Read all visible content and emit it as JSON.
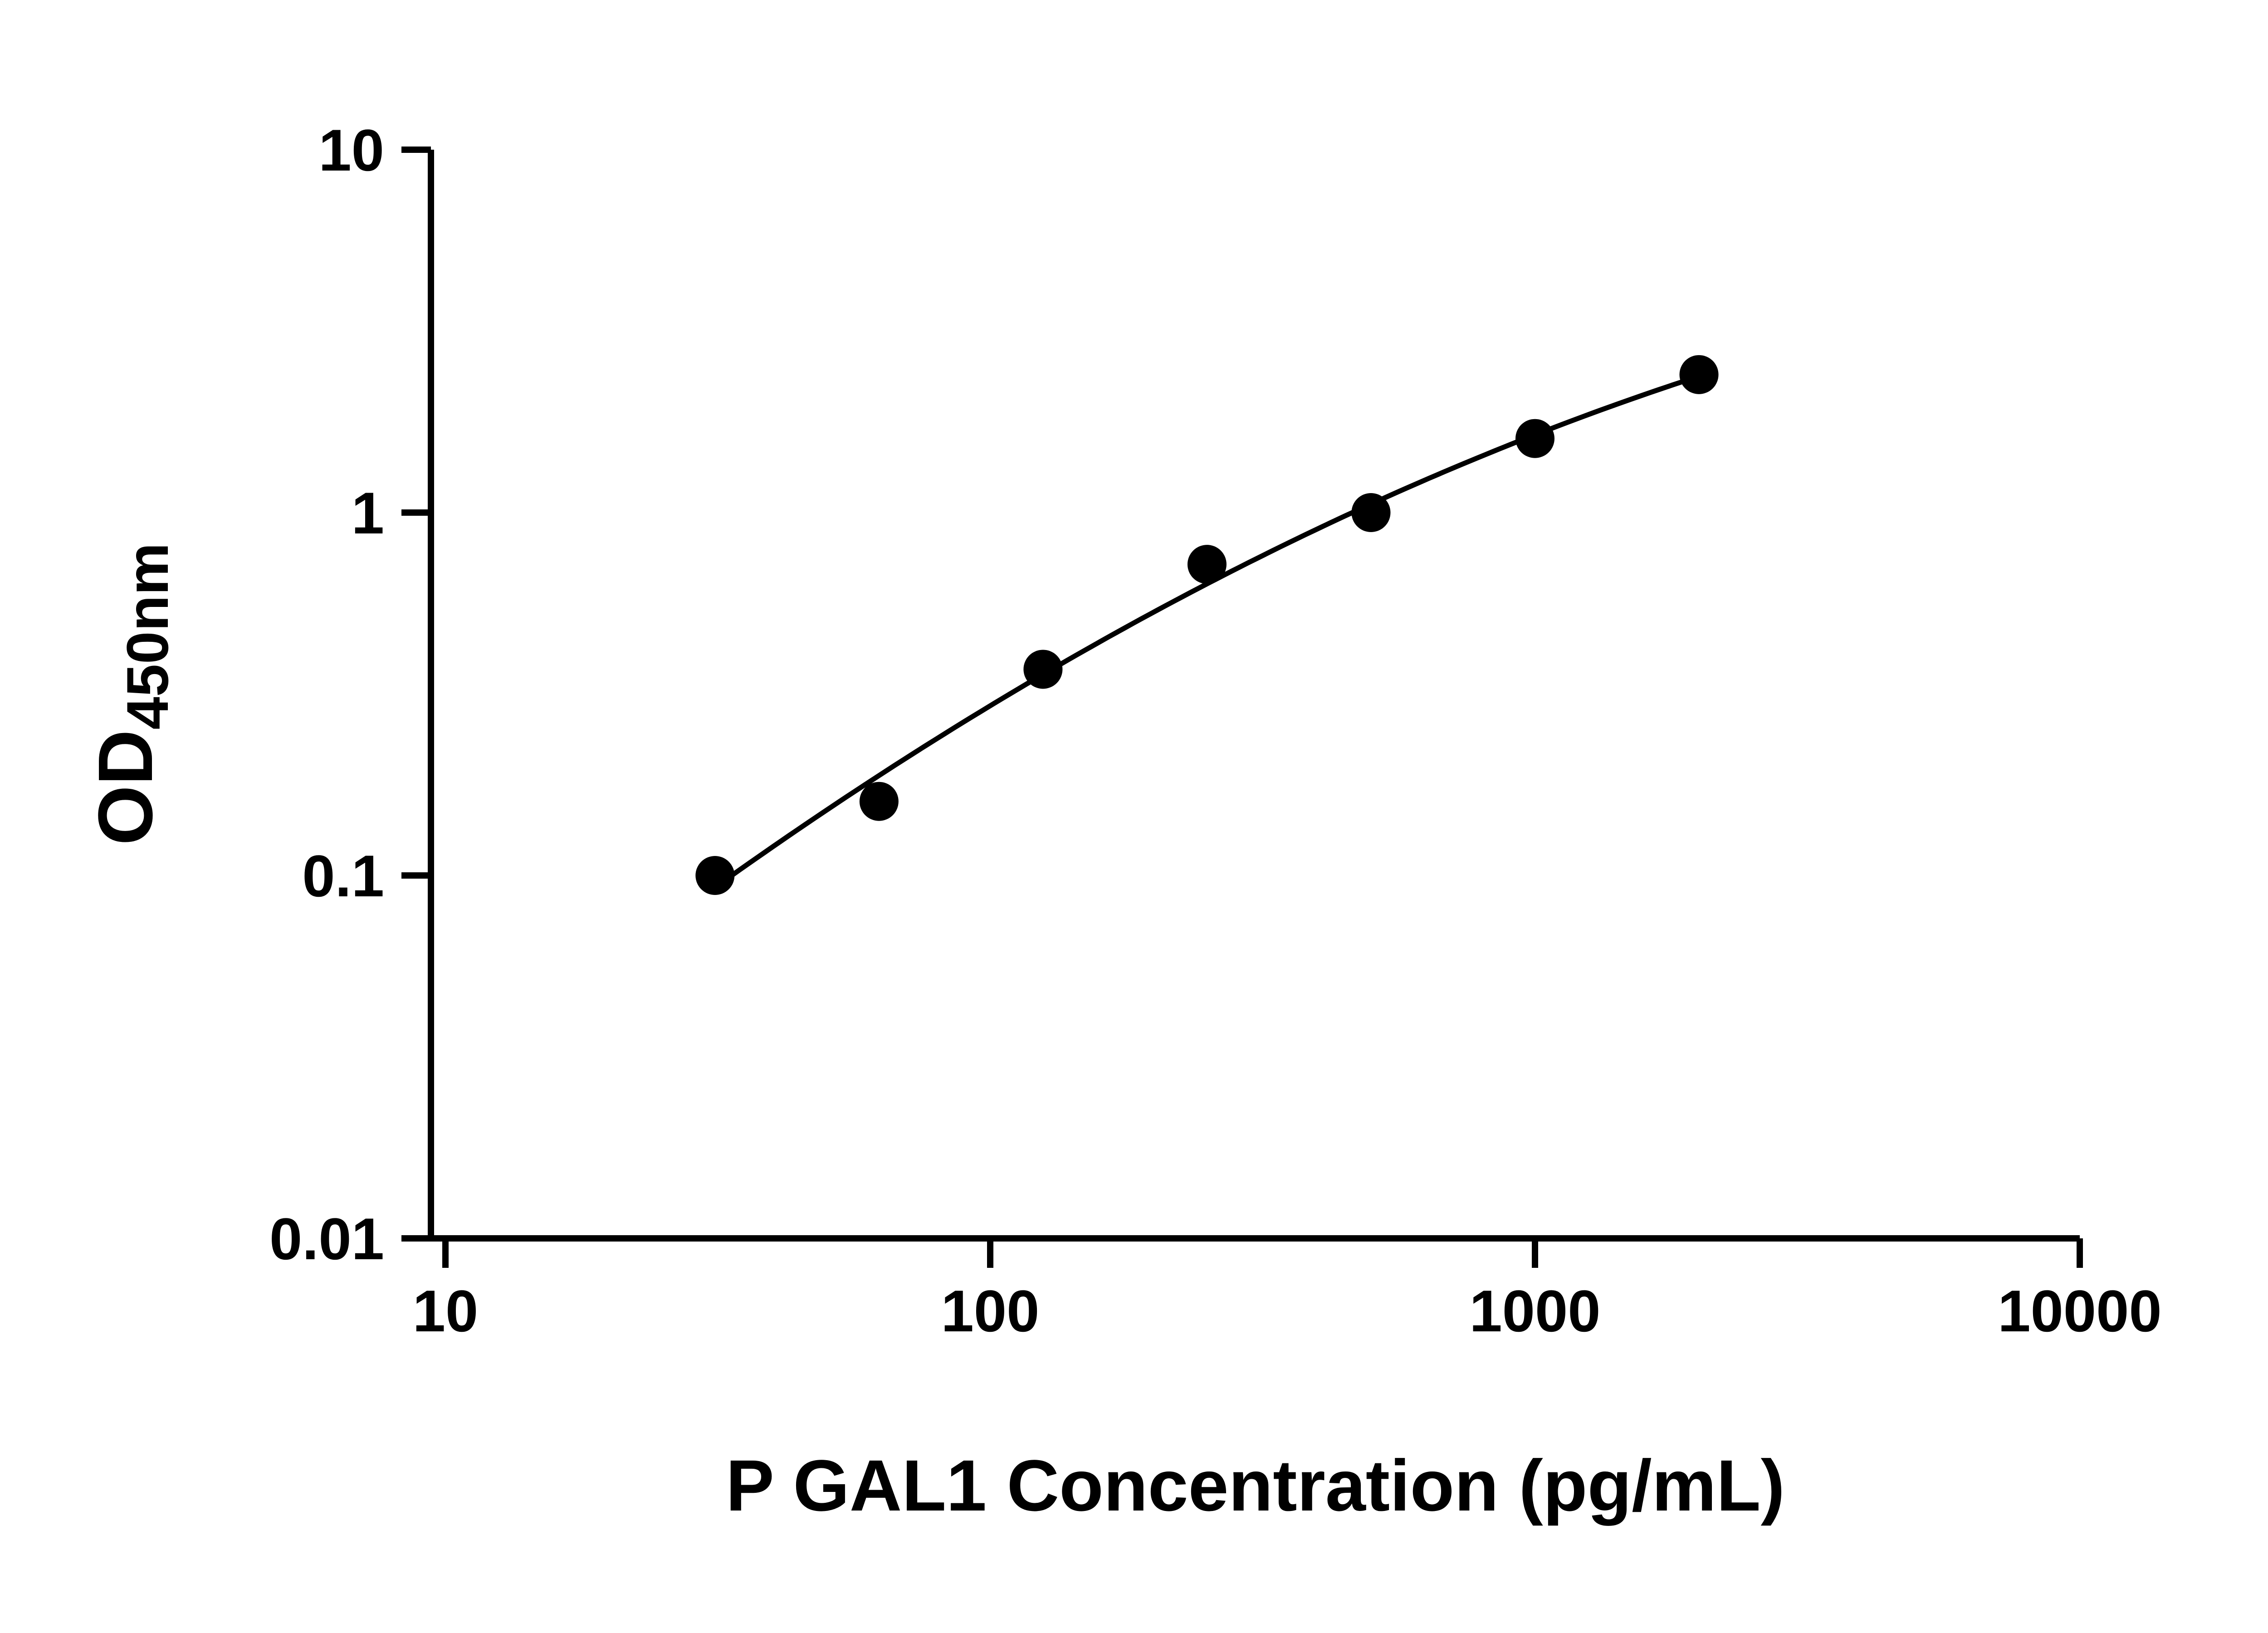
{
  "chart_data": {
    "type": "scatter",
    "title": "",
    "xlabel": "P GAL1 Concentration (pg/mL)",
    "ylabel": "OD",
    "ylabel_subscript": "450nm",
    "x_scale": "log10",
    "y_scale": "log10",
    "xlim": [
      10,
      10000
    ],
    "ylim": [
      0.01,
      10
    ],
    "x_ticks": [
      10,
      100,
      1000,
      10000
    ],
    "x_tick_labels": [
      "10",
      "100",
      "1000",
      "10000"
    ],
    "y_ticks": [
      10,
      1,
      0.1,
      0.01
    ],
    "y_tick_labels": [
      "10",
      "1",
      "0.1",
      "0.01"
    ],
    "grid": false,
    "legend": false,
    "marker_color": "#000000",
    "curve_color": "#000000",
    "series": [
      {
        "marker": "filled-circle",
        "fit_curve": true,
        "points": [
          {
            "x": 31.25,
            "y": 0.1
          },
          {
            "x": 62.5,
            "y": 0.16
          },
          {
            "x": 125,
            "y": 0.37
          },
          {
            "x": 250,
            "y": 0.72
          },
          {
            "x": 500,
            "y": 1.0
          },
          {
            "x": 1000,
            "y": 1.6
          },
          {
            "x": 2000,
            "y": 2.4
          }
        ]
      }
    ]
  }
}
